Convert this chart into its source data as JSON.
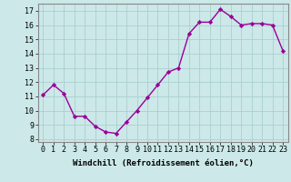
{
  "x": [
    0,
    1,
    2,
    3,
    4,
    5,
    6,
    7,
    8,
    9,
    10,
    11,
    12,
    13,
    14,
    15,
    16,
    17,
    18,
    19,
    20,
    21,
    22,
    23
  ],
  "y": [
    11.1,
    11.8,
    11.2,
    9.6,
    9.6,
    8.9,
    8.5,
    8.4,
    9.2,
    10.0,
    10.9,
    11.8,
    12.7,
    13.0,
    15.4,
    16.2,
    16.2,
    17.1,
    16.6,
    16.0,
    16.1,
    16.1,
    16.0,
    14.2
  ],
  "line_color": "#990099",
  "marker": "D",
  "markersize": 2.2,
  "linewidth": 1.0,
  "xlabel": "Windchill (Refroidissement éolien,°C)",
  "xlabel_fontsize": 6.5,
  "xlim": [
    -0.5,
    23.5
  ],
  "ylim": [
    7.8,
    17.5
  ],
  "yticks": [
    8,
    9,
    10,
    11,
    12,
    13,
    14,
    15,
    16,
    17
  ],
  "xtick_labels": [
    "0",
    "1",
    "2",
    "3",
    "4",
    "5",
    "6",
    "7",
    "8",
    "9",
    "10",
    "11",
    "12",
    "13",
    "14",
    "15",
    "16",
    "17",
    "18",
    "19",
    "20",
    "21",
    "22",
    "23"
  ],
  "grid_color": "#aacfcf",
  "background_color": "#cce8e8",
  "tick_fontsize": 6.0,
  "spine_color": "#888888"
}
